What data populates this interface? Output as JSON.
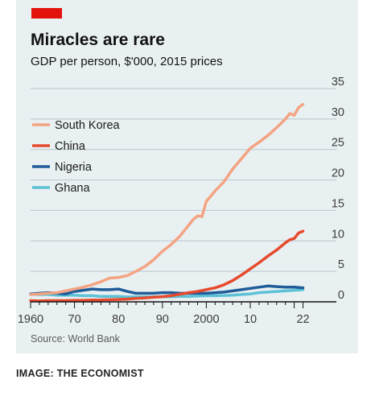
{
  "chart": {
    "title": "Miracles are rare",
    "subtitle": "GDP per person, $'000, 2015 prices",
    "source": "Source: World Bank"
  },
  "caption": "IMAGE: THE ECONOMIST",
  "colors": {
    "background": "#e9f0f2",
    "accent_tag": "#e3120b",
    "gridline": "#b7c6cd",
    "axis": "#121212"
  },
  "chart_data": {
    "type": "line",
    "title": "Miracles are rare",
    "subtitle": "GDP per person, $'000, 2015 prices",
    "xlabel": "",
    "ylabel": "",
    "xlim": [
      1960,
      2023
    ],
    "ylim": [
      0,
      35
    ],
    "x_ticks": [
      1960,
      1970,
      1980,
      1990,
      2000,
      2010,
      2022
    ],
    "x_tick_labels": [
      "1960",
      "70",
      "80",
      "90",
      "2000",
      "10",
      "22"
    ],
    "y_ticks": [
      0,
      5,
      10,
      15,
      20,
      25,
      30,
      35
    ],
    "y_tick_labels": [
      "0",
      "5",
      "10",
      "15",
      "20",
      "25",
      "30",
      "35"
    ],
    "y_axis_side": "right",
    "grid": "horizontal",
    "legend_position": "left",
    "series": [
      {
        "name": "South Korea",
        "color": "#f4a382",
        "x": [
          1960,
          1962,
          1964,
          1966,
          1968,
          1970,
          1972,
          1974,
          1976,
          1978,
          1980,
          1982,
          1984,
          1986,
          1988,
          1990,
          1992,
          1994,
          1996,
          1997,
          1998,
          1999,
          2000,
          2002,
          2004,
          2006,
          2008,
          2010,
          2012,
          2014,
          2016,
          2018,
          2019,
          2020,
          2021,
          2022
        ],
        "values": [
          1.2,
          1.3,
          1.4,
          1.5,
          1.8,
          2.1,
          2.4,
          2.8,
          3.3,
          3.9,
          4.0,
          4.3,
          5.0,
          5.8,
          6.9,
          8.3,
          9.4,
          10.8,
          12.6,
          13.5,
          14.1,
          14.0,
          16.5,
          18.2,
          19.7,
          21.8,
          23.5,
          25.2,
          26.2,
          27.3,
          28.6,
          30.0,
          30.9,
          30.6,
          31.9,
          32.4
        ]
      },
      {
        "name": "China",
        "color": "#e64a2e",
        "x": [
          1960,
          1962,
          1964,
          1966,
          1968,
          1970,
          1972,
          1974,
          1976,
          1978,
          1980,
          1982,
          1984,
          1986,
          1988,
          1990,
          1992,
          1994,
          1996,
          1998,
          2000,
          2002,
          2004,
          2006,
          2008,
          2010,
          2012,
          2014,
          2016,
          2018,
          2019,
          2020,
          2021,
          2022
        ],
        "values": [
          0.2,
          0.15,
          0.2,
          0.2,
          0.2,
          0.25,
          0.25,
          0.3,
          0.3,
          0.35,
          0.4,
          0.45,
          0.55,
          0.65,
          0.75,
          0.85,
          1.0,
          1.25,
          1.5,
          1.7,
          2.0,
          2.3,
          2.8,
          3.5,
          4.4,
          5.4,
          6.4,
          7.5,
          8.5,
          9.7,
          10.2,
          10.4,
          11.3,
          11.6
        ]
      },
      {
        "name": "Nigeria",
        "color": "#1f5c99",
        "x": [
          1960,
          1962,
          1964,
          1966,
          1968,
          1970,
          1972,
          1974,
          1976,
          1978,
          1980,
          1982,
          1984,
          1986,
          1988,
          1990,
          1992,
          1994,
          1996,
          1998,
          2000,
          2002,
          2004,
          2006,
          2008,
          2010,
          2012,
          2014,
          2016,
          2018,
          2020,
          2022
        ],
        "values": [
          1.3,
          1.4,
          1.5,
          1.4,
          1.3,
          1.7,
          1.9,
          2.1,
          2.0,
          2.0,
          2.1,
          1.7,
          1.4,
          1.4,
          1.4,
          1.5,
          1.5,
          1.4,
          1.4,
          1.4,
          1.4,
          1.5,
          1.6,
          1.8,
          2.0,
          2.2,
          2.4,
          2.6,
          2.5,
          2.4,
          2.4,
          2.3
        ]
      },
      {
        "name": "Ghana",
        "color": "#5dc1d6",
        "x": [
          1960,
          1962,
          1964,
          1966,
          1968,
          1970,
          1972,
          1974,
          1976,
          1978,
          1980,
          1982,
          1984,
          1986,
          1988,
          1990,
          1992,
          1994,
          1996,
          1998,
          2000,
          2002,
          2004,
          2006,
          2008,
          2010,
          2012,
          2014,
          2016,
          2018,
          2020,
          2022
        ],
        "values": [
          1.2,
          1.2,
          1.2,
          1.1,
          1.1,
          1.1,
          1.0,
          1.0,
          0.9,
          0.9,
          0.9,
          0.8,
          0.8,
          0.8,
          0.8,
          0.85,
          0.85,
          0.9,
          0.9,
          0.95,
          1.0,
          1.0,
          1.05,
          1.1,
          1.2,
          1.3,
          1.5,
          1.6,
          1.7,
          1.8,
          1.9,
          2.0
        ]
      }
    ]
  }
}
